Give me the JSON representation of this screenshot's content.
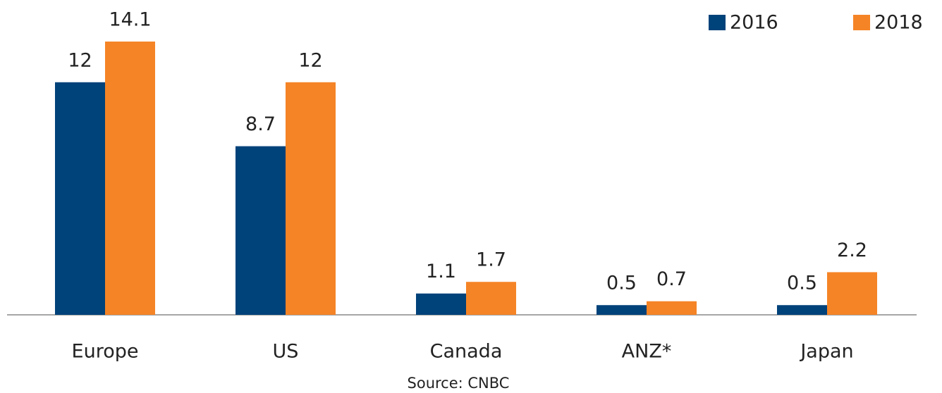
{
  "chart_data": {
    "type": "bar",
    "categories": [
      "Europe",
      "US",
      "Canada",
      "ANZ*",
      "Japan"
    ],
    "series": [
      {
        "name": "2016",
        "color": "#00427a",
        "values": [
          12,
          8.7,
          1.1,
          0.5,
          0.5
        ]
      },
      {
        "name": "2018",
        "color": "#f58426",
        "values": [
          14.1,
          12,
          1.7,
          0.7,
          2.2
        ]
      }
    ],
    "source": "Source: CNBC",
    "legend": "top-right"
  }
}
